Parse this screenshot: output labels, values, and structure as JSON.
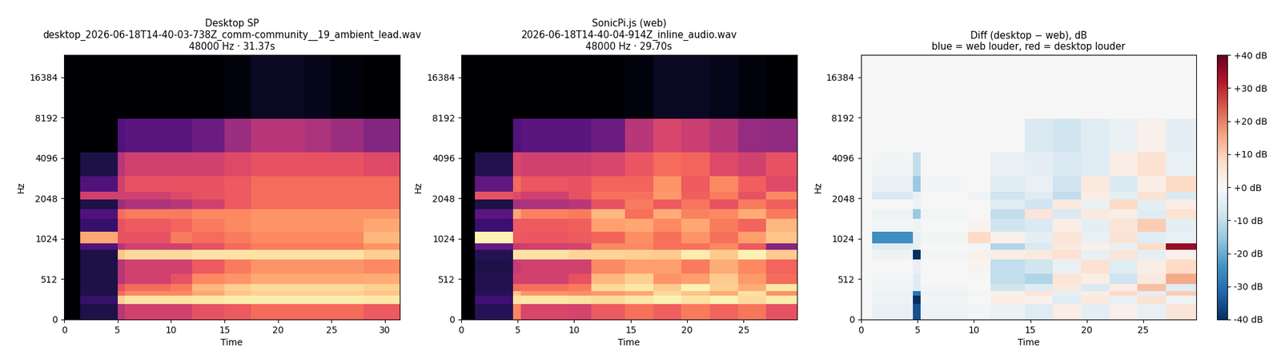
{
  "chart_data": [
    {
      "type": "heatmap",
      "title": "Desktop SP\ndesktop_2026-06-18T14-40-03-738Z_comm-community__19_ambient_lead.wav\n48000 Hz · 31.37s",
      "x_label": "Time",
      "y_label": "Hz",
      "log": "y",
      "color": "magma",
      "xlim": [
        0,
        31.37
      ],
      "ylim": [
        0,
        24000
      ],
      "xticks": [
        0,
        5,
        10,
        15,
        20,
        25,
        30
      ],
      "yticks": [
        0,
        512,
        1024,
        2048,
        4096,
        8192,
        16384
      ],
      "cell_range": [
        -80,
        0
      ],
      "x_edges": [
        0,
        1.5,
        5,
        5.7,
        10,
        12,
        15,
        17.5,
        20,
        22.5,
        25,
        28,
        31.37
      ],
      "y_edges": [
        0,
        200,
        300,
        360,
        450,
        560,
        720,
        850,
        950,
        1150,
        1450,
        1700,
        2000,
        2300,
        3000,
        4500,
        8000,
        24000
      ],
      "cells": [
        [
          -80,
          -70,
          -40,
          -35,
          -35,
          -30,
          -28,
          -25,
          -25,
          -25,
          -25,
          -28
        ],
        [
          -80,
          -65,
          -8,
          -5,
          -5,
          -4,
          -3,
          -3,
          -3,
          -3,
          -3,
          -4
        ],
        [
          -80,
          -70,
          -25,
          -20,
          -20,
          -15,
          -10,
          -8,
          -8,
          -8,
          -8,
          -10
        ],
        [
          -80,
          -70,
          -30,
          -25,
          -22,
          -12,
          -8,
          -6,
          -6,
          -6,
          -6,
          -8
        ],
        [
          -80,
          -70,
          -40,
          -35,
          -30,
          -20,
          -18,
          -15,
          -15,
          -15,
          -15,
          -14
        ],
        [
          -80,
          -70,
          -40,
          -35,
          -35,
          -28,
          -22,
          -18,
          -18,
          -18,
          -18,
          -20
        ],
        [
          -80,
          -70,
          -10,
          -6,
          -6,
          -5,
          -5,
          -5,
          -5,
          -5,
          -5,
          -8
        ],
        [
          -80,
          -60,
          -40,
          -35,
          -35,
          -30,
          -25,
          -22,
          -22,
          -22,
          -22,
          -18
        ],
        [
          -80,
          -15,
          -30,
          -30,
          -22,
          -25,
          -22,
          -20,
          -20,
          -20,
          -20,
          -12
        ],
        [
          -80,
          -65,
          -30,
          -28,
          -26,
          -22,
          -20,
          -18,
          -18,
          -18,
          -18,
          -15
        ],
        [
          -80,
          -60,
          -25,
          -22,
          -22,
          -20,
          -20,
          -18,
          -18,
          -18,
          -18,
          -18
        ],
        [
          -80,
          -70,
          -45,
          -42,
          -40,
          -35,
          -28,
          -25,
          -25,
          -25,
          -25,
          -25
        ],
        [
          -80,
          -35,
          -35,
          -35,
          -32,
          -30,
          -28,
          -25,
          -25,
          -25,
          -25,
          -25
        ],
        [
          -80,
          -60,
          -35,
          -30,
          -30,
          -30,
          -28,
          -25,
          -25,
          -25,
          -25,
          -25
        ],
        [
          -80,
          -70,
          -40,
          -35,
          -35,
          -35,
          -32,
          -30,
          -30,
          -30,
          -30,
          -32
        ],
        [
          -80,
          -80,
          -60,
          -58,
          -58,
          -55,
          -45,
          -40,
          -40,
          -42,
          -45,
          -50
        ],
        [
          -80,
          -80,
          -80,
          -80,
          -80,
          -80,
          -78,
          -75,
          -75,
          -76,
          -78,
          -80
        ]
      ]
    },
    {
      "type": "heatmap",
      "title": "SonicPi.js (web)\n2026-06-18T14-40-04-914Z_inline_audio.wav\n48000 Hz · 29.70s",
      "x_label": "Time",
      "y_label": "Hz",
      "log": "y",
      "color": "magma",
      "xlim": [
        0,
        29.7
      ],
      "ylim": [
        0,
        24000
      ],
      "xticks": [
        0,
        5,
        10,
        15,
        20,
        25
      ],
      "yticks": [
        0,
        512,
        1024,
        2048,
        4096,
        8192,
        16384
      ],
      "cell_range": [
        -80,
        0
      ],
      "x_edges": [
        0,
        1.2,
        4.6,
        5.3,
        9.5,
        11.5,
        14.5,
        17,
        19.5,
        22,
        24.5,
        27,
        29.7
      ],
      "y_edges": [
        0,
        200,
        300,
        360,
        450,
        560,
        720,
        850,
        950,
        1150,
        1450,
        1700,
        2000,
        2300,
        3000,
        4500,
        8000,
        24000
      ],
      "cells": [
        [
          -80,
          -68,
          -20,
          -33,
          -34,
          -28,
          -24,
          -27,
          -22,
          -26,
          -23,
          -30
        ],
        [
          -80,
          -63,
          -5,
          -4,
          -5,
          -6,
          -4,
          -2,
          -5,
          -2,
          -6,
          -3
        ],
        [
          -80,
          -68,
          -10,
          -18,
          -19,
          -17,
          -15,
          -6,
          -10,
          -14,
          -5,
          -18
        ],
        [
          -80,
          -69,
          -25,
          -24,
          -22,
          -6,
          -4,
          -9,
          -2,
          -8,
          -14,
          -4
        ],
        [
          -80,
          -69,
          -35,
          -35,
          -30,
          -12,
          -8,
          -18,
          -16,
          -9,
          -17,
          -25
        ],
        [
          -80,
          -70,
          -37,
          -35,
          -35,
          -20,
          -16,
          -16,
          -22,
          -14,
          -20,
          -26
        ],
        [
          -80,
          -68,
          -5,
          -5,
          -7,
          -7,
          -8,
          -9,
          -3,
          -9,
          -2,
          -9
        ],
        [
          -80,
          -56,
          -37,
          -35,
          -34,
          -20,
          -20,
          -24,
          -24,
          -20,
          -28,
          -50
        ],
        [
          -80,
          -2,
          -28,
          -29,
          -28,
          -26,
          -19,
          -24,
          -18,
          -24,
          -16,
          -10
        ],
        [
          -80,
          -64,
          -28,
          -28,
          -27,
          -16,
          -15,
          -20,
          -15,
          -22,
          -26,
          -12
        ],
        [
          -80,
          -58,
          -15,
          -21,
          -22,
          -12,
          -24,
          -14,
          -21,
          -20,
          -14,
          -22
        ],
        [
          -80,
          -70,
          -43,
          -42,
          -40,
          -30,
          -22,
          -28,
          -23,
          -30,
          -22,
          -27
        ],
        [
          -80,
          -30,
          -32,
          -35,
          -30,
          -24,
          -24,
          -17,
          -27,
          -22,
          -30,
          -20
        ],
        [
          -80,
          -57,
          -25,
          -29,
          -30,
          -26,
          -26,
          -18,
          -28,
          -20,
          -27,
          -32
        ],
        [
          -80,
          -69,
          -33,
          -35,
          -35,
          -33,
          -29,
          -25,
          -26,
          -32,
          -35,
          -30
        ],
        [
          -80,
          -80,
          -60,
          -58,
          -58,
          -55,
          -40,
          -33,
          -36,
          -40,
          -46,
          -47
        ],
        [
          -80,
          -80,
          -80,
          -80,
          -80,
          -80,
          -78,
          -75,
          -75,
          -76,
          -78,
          -80
        ]
      ]
    },
    {
      "type": "heatmap",
      "title": "Diff (desktop − web), dB\nblue = web louder, red = desktop louder",
      "x_label": "Time",
      "y_label": "Hz",
      "log": "y",
      "color": "RdBu_r",
      "xlim": [
        0,
        29.7
      ],
      "ylim": [
        0,
        24000
      ],
      "xticks": [
        0,
        5,
        10,
        15,
        20,
        25
      ],
      "yticks": [
        0,
        512,
        1024,
        2048,
        4096,
        8192,
        16384
      ],
      "cell_range": [
        -40,
        40
      ],
      "colorbar_ticks": [
        {
          "value": 40,
          "label": "+40 dB"
        },
        {
          "value": 30,
          "label": "+30 dB"
        },
        {
          "value": 20,
          "label": "+20 dB"
        },
        {
          "value": 10,
          "label": "+10 dB"
        },
        {
          "value": 0,
          "label": "+0 dB"
        },
        {
          "value": -10,
          "label": "-10 dB"
        },
        {
          "value": -20,
          "label": "-20 dB"
        },
        {
          "value": -30,
          "label": "-30 dB"
        },
        {
          "value": -40,
          "label": "-40 dB"
        }
      ],
      "x_edges": [
        0,
        1,
        4.6,
        5.3,
        9.5,
        11.5,
        14.5,
        17,
        19.5,
        22,
        24.5,
        27,
        29.7
      ],
      "y_edges": [
        0,
        200,
        300,
        360,
        450,
        560,
        720,
        850,
        950,
        1150,
        1450,
        1700,
        2000,
        2300,
        3000,
        4500,
        8000,
        24000
      ],
      "cells": [
        [
          0,
          -3,
          -35,
          -2,
          -1,
          -2,
          -5,
          3,
          -4,
          2,
          -3,
          5
        ],
        [
          0,
          -2,
          -40,
          -1,
          0,
          3,
          2,
          -5,
          4,
          -3,
          6,
          -2
        ],
        [
          0,
          -2,
          -30,
          -2,
          -1,
          2,
          5,
          -3,
          3,
          8,
          -4,
          10
        ],
        [
          0,
          -1,
          -5,
          -1,
          0,
          -8,
          -5,
          4,
          -6,
          3,
          12,
          -5
        ],
        [
          0,
          -1,
          -5,
          0,
          0,
          -10,
          -12,
          5,
          3,
          -8,
          4,
          15
        ],
        [
          0,
          0,
          -3,
          0,
          1,
          -10,
          -8,
          -3,
          6,
          -5,
          3,
          8
        ],
        [
          0,
          -2,
          -40,
          -1,
          2,
          3,
          4,
          6,
          -3,
          5,
          -4,
          2
        ],
        [
          0,
          -5,
          -3,
          0,
          -1,
          -12,
          -6,
          4,
          2,
          -3,
          8,
          35
        ],
        [
          0,
          -25,
          -3,
          -1,
          8,
          2,
          -4,
          5,
          -3,
          6,
          -5,
          -3
        ],
        [
          0,
          -1,
          -2,
          0,
          1,
          -8,
          -6,
          3,
          -4,
          5,
          10,
          -4
        ],
        [
          0,
          -2,
          -15,
          -1,
          0,
          -10,
          5,
          -6,
          4,
          3,
          -5,
          6
        ],
        [
          0,
          0,
          -2,
          0,
          0,
          -5,
          -8,
          4,
          -3,
          8,
          -4,
          3
        ],
        [
          0,
          -6,
          -3,
          0,
          -2,
          -8,
          -5,
          -10,
          3,
          -4,
          6,
          -6
        ],
        [
          0,
          -3,
          -15,
          -1,
          0,
          -5,
          -3,
          -8,
          4,
          -6,
          3,
          8
        ],
        [
          0,
          -1,
          -10,
          0,
          0,
          -3,
          -4,
          -6,
          -5,
          3,
          6,
          -3
        ],
        [
          0,
          0,
          0,
          0,
          0,
          0,
          -6,
          -8,
          -5,
          -3,
          2,
          -4
        ],
        [
          0,
          0,
          0,
          0,
          0,
          0,
          0,
          0,
          0,
          0,
          0,
          0
        ]
      ]
    }
  ]
}
